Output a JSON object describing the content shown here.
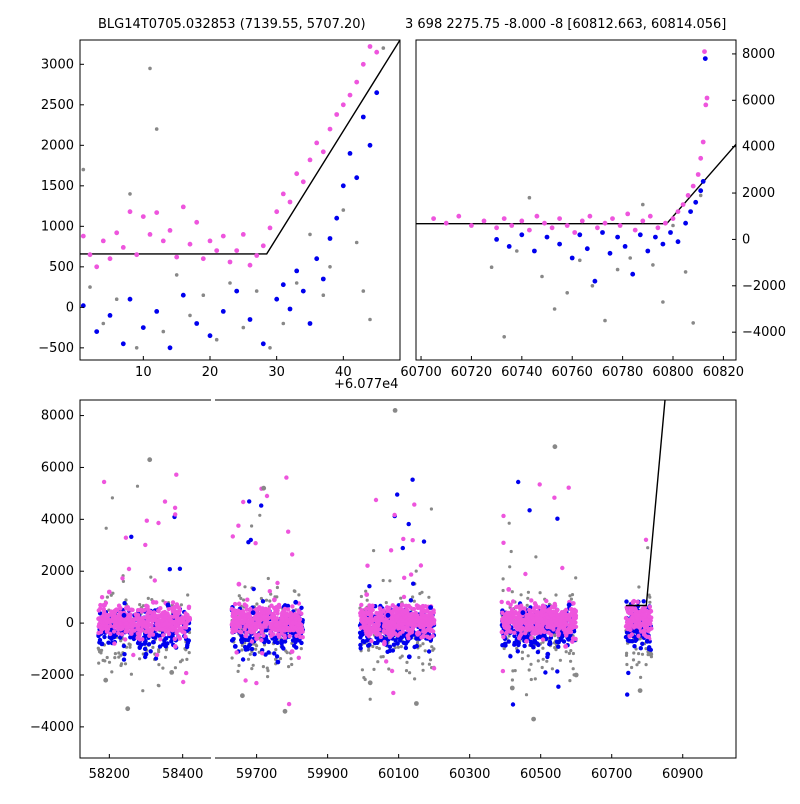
{
  "figure": {
    "title_left": "BLG14T0705.032853 (7139.55, 5707.20)",
    "title_right": "3 698 2275.75 -8.000 -8 [60812.663, 60814.056]",
    "offset_label": "+6.077e4"
  },
  "colors": {
    "pink": "#ee55dd",
    "blue": "#0000ee",
    "gray": "#888888",
    "line": "#000000"
  },
  "chart_data": [
    {
      "panel": "top-left",
      "type": "scatter",
      "title": "BLG14T0705.032853 (7139.55, 5707.20)",
      "x_offset_note": "+6.077e4",
      "xlim": [
        0.5,
        48.5
      ],
      "ylim": [
        -650,
        3300
      ],
      "xticks": [
        10,
        20,
        30,
        40
      ],
      "yticks": [
        -500,
        0,
        500,
        1000,
        1500,
        2000,
        2500,
        3000
      ],
      "model_line": [
        [
          0.5,
          660
        ],
        [
          28.5,
          660
        ],
        [
          48.5,
          3300
        ]
      ],
      "series": [
        {
          "color": "pink",
          "points": [
            [
              1,
              880
            ],
            [
              2,
              650
            ],
            [
              3,
              500
            ],
            [
              4,
              820
            ],
            [
              5,
              600
            ],
            [
              6,
              920
            ],
            [
              7,
              740
            ],
            [
              8,
              1180
            ],
            [
              9,
              650
            ],
            [
              10,
              1120
            ],
            [
              11,
              900
            ],
            [
              12,
              1170
            ],
            [
              13,
              820
            ],
            [
              14,
              950
            ],
            [
              15,
              620
            ],
            [
              16,
              1240
            ],
            [
              17,
              780
            ],
            [
              18,
              1050
            ],
            [
              19,
              600
            ],
            [
              20,
              820
            ],
            [
              21,
              700
            ],
            [
              22,
              880
            ],
            [
              23,
              560
            ],
            [
              24,
              700
            ],
            [
              25,
              900
            ],
            [
              26,
              520
            ],
            [
              27,
              640
            ],
            [
              28,
              760
            ],
            [
              29,
              980
            ],
            [
              30,
              1180
            ],
            [
              31,
              1400
            ],
            [
              32,
              1300
            ],
            [
              33,
              1650
            ],
            [
              34,
              1550
            ],
            [
              35,
              1820
            ],
            [
              36,
              2030
            ],
            [
              37,
              1920
            ],
            [
              38,
              2200
            ],
            [
              39,
              2380
            ],
            [
              40,
              2500
            ],
            [
              41,
              2620
            ],
            [
              42,
              2780
            ],
            [
              43,
              3000
            ],
            [
              44,
              3220
            ],
            [
              45,
              3150
            ]
          ]
        },
        {
          "color": "blue",
          "points": [
            [
              1,
              20
            ],
            [
              3,
              -300
            ],
            [
              5,
              -100
            ],
            [
              7,
              -450
            ],
            [
              8,
              100
            ],
            [
              10,
              -250
            ],
            [
              12,
              -50
            ],
            [
              14,
              -500
            ],
            [
              16,
              150
            ],
            [
              18,
              -200
            ],
            [
              20,
              -350
            ],
            [
              22,
              -50
            ],
            [
              24,
              200
            ],
            [
              26,
              -150
            ],
            [
              28,
              -450
            ],
            [
              30,
              100
            ],
            [
              31,
              280
            ],
            [
              32,
              -20
            ],
            [
              33,
              450
            ],
            [
              34,
              200
            ],
            [
              35,
              -200
            ],
            [
              36,
              600
            ],
            [
              37,
              350
            ],
            [
              38,
              850
            ],
            [
              39,
              1100
            ],
            [
              40,
              1500
            ],
            [
              41,
              1900
            ],
            [
              42,
              1600
            ],
            [
              43,
              2350
            ],
            [
              44,
              2000
            ],
            [
              45,
              2650
            ]
          ]
        },
        {
          "color": "gray",
          "points": [
            [
              1,
              1700
            ],
            [
              2,
              250
            ],
            [
              4,
              -200
            ],
            [
              6,
              100
            ],
            [
              8,
              1400
            ],
            [
              9,
              -500
            ],
            [
              11,
              2950
            ],
            [
              12,
              2200
            ],
            [
              13,
              -300
            ],
            [
              15,
              400
            ],
            [
              17,
              -100
            ],
            [
              19,
              150
            ],
            [
              21,
              -400
            ],
            [
              23,
              300
            ],
            [
              25,
              -250
            ],
            [
              27,
              200
            ],
            [
              29,
              -500
            ],
            [
              31,
              -200
            ],
            [
              33,
              300
            ],
            [
              35,
              900
            ],
            [
              37,
              150
            ],
            [
              38,
              500
            ],
            [
              40,
              1200
            ],
            [
              42,
              800
            ],
            [
              43,
              200
            ],
            [
              44,
              -150
            ],
            [
              46,
              3200
            ]
          ]
        }
      ]
    },
    {
      "panel": "top-right",
      "type": "scatter",
      "title": "3 698 2275.75 -8.000 -8 [60812.663, 60814.056]",
      "xlim": [
        60698,
        60825
      ],
      "ylim": [
        -5200,
        8600
      ],
      "xticks": [
        60700,
        60720,
        60740,
        60760,
        60780,
        60800,
        60820
      ],
      "yticks": [
        -4000,
        -2000,
        0,
        2000,
        4000,
        6000,
        8000
      ],
      "model_line": [
        [
          60698,
          680
        ],
        [
          60797.5,
          680
        ],
        [
          60825,
          4100
        ]
      ],
      "series": [
        {
          "color": "pink",
          "points": [
            [
              60705,
              900
            ],
            [
              60710,
              700
            ],
            [
              60715,
              1000
            ],
            [
              60720,
              600
            ],
            [
              60725,
              800
            ],
            [
              60730,
              500
            ],
            [
              60733,
              900
            ],
            [
              60736,
              600
            ],
            [
              60740,
              800
            ],
            [
              60743,
              400
            ],
            [
              60746,
              1000
            ],
            [
              60749,
              700
            ],
            [
              60752,
              500
            ],
            [
              60755,
              900
            ],
            [
              60758,
              600
            ],
            [
              60761,
              300
            ],
            [
              60764,
              800
            ],
            [
              60767,
              1000
            ],
            [
              60770,
              500
            ],
            [
              60773,
              700
            ],
            [
              60776,
              900
            ],
            [
              60779,
              600
            ],
            [
              60782,
              1100
            ],
            [
              60785,
              400
            ],
            [
              60788,
              800
            ],
            [
              60791,
              1000
            ],
            [
              60794,
              500
            ],
            [
              60797,
              700
            ],
            [
              60800,
              900
            ],
            [
              60802,
              1200
            ],
            [
              60804,
              1500
            ],
            [
              60806,
              1900
            ],
            [
              60808,
              2300
            ],
            [
              60810,
              2800
            ],
            [
              60811,
              3500
            ],
            [
              60812,
              4200
            ],
            [
              60813,
              5800
            ],
            [
              60813.5,
              6100
            ],
            [
              60812.5,
              8100
            ]
          ]
        },
        {
          "color": "blue",
          "points": [
            [
              60730,
              0
            ],
            [
              60735,
              -300
            ],
            [
              60740,
              200
            ],
            [
              60745,
              -500
            ],
            [
              60750,
              100
            ],
            [
              60755,
              -200
            ],
            [
              60760,
              -800
            ],
            [
              60763,
              200
            ],
            [
              60766,
              -400
            ],
            [
              60769,
              -1800
            ],
            [
              60772,
              300
            ],
            [
              60775,
              -600
            ],
            [
              60778,
              100
            ],
            [
              60781,
              -300
            ],
            [
              60784,
              -1500
            ],
            [
              60787,
              200
            ],
            [
              60790,
              -500
            ],
            [
              60793,
              100
            ],
            [
              60796,
              -200
            ],
            [
              60799,
              300
            ],
            [
              60802,
              -100
            ],
            [
              60805,
              700
            ],
            [
              60807,
              1200
            ],
            [
              60809,
              1600
            ],
            [
              60811,
              2100
            ],
            [
              60812,
              2500
            ],
            [
              60812.8,
              7800
            ]
          ]
        },
        {
          "color": "gray",
          "points": [
            [
              60728,
              -1200
            ],
            [
              60733,
              -4200
            ],
            [
              60738,
              -500
            ],
            [
              60743,
              1800
            ],
            [
              60748,
              -1600
            ],
            [
              60753,
              -3000
            ],
            [
              60758,
              -2300
            ],
            [
              60763,
              -900
            ],
            [
              60768,
              -2000
            ],
            [
              60773,
              -3500
            ],
            [
              60778,
              -1300
            ],
            [
              60783,
              -800
            ],
            [
              60788,
              1500
            ],
            [
              60792,
              -1100
            ],
            [
              60796,
              -2700
            ],
            [
              60800,
              600
            ],
            [
              60805,
              -1400
            ],
            [
              60808,
              -3600
            ],
            [
              60811,
              1900
            ]
          ]
        }
      ]
    },
    {
      "panel": "bottom",
      "type": "scatter",
      "xlim": [
        58120,
        61050
      ],
      "ylim": [
        -5200,
        8600
      ],
      "xticks": [
        58200,
        58400,
        59700,
        59900,
        60100,
        60300,
        60500,
        60700,
        60900
      ],
      "yticks": [
        -4000,
        -2000,
        0,
        2000,
        4000,
        6000,
        8000
      ],
      "segments": [
        {
          "xlim": [
            58120,
            58480
          ],
          "clusters": [
            [
              58170,
              58420
            ]
          ]
        },
        {
          "xlim": [
            59580,
            60850
          ],
          "clusters": [
            [
              59630,
              59830
            ],
            [
              59990,
              60200
            ],
            [
              60390,
              60600
            ],
            [
              60740,
              60812
            ]
          ]
        }
      ],
      "model_line": [
        [
          60740,
          680
        ],
        [
          60797.5,
          680
        ],
        [
          60850,
          8600
        ]
      ],
      "series": [
        {
          "color": "pink",
          "points": [
            [
              58200,
              1200
            ],
            [
              58260,
              -400
            ],
            [
              58320,
              800
            ],
            [
              58380,
              -900
            ],
            [
              59650,
              1500
            ],
            [
              59700,
              -600
            ],
            [
              59750,
              900
            ],
            [
              59800,
              -1100
            ],
            [
              60010,
              1100
            ],
            [
              60060,
              -800
            ],
            [
              60110,
              700
            ],
            [
              60170,
              -500
            ],
            [
              60410,
              1300
            ],
            [
              60460,
              -700
            ],
            [
              60510,
              600
            ],
            [
              60570,
              -900
            ],
            [
              60760,
              800
            ],
            [
              60790,
              500
            ],
            [
              60805,
              -600
            ]
          ]
        },
        {
          "color": "blue",
          "points": [
            [
              58180,
              -800
            ],
            [
              58240,
              300
            ],
            [
              58300,
              -1200
            ],
            [
              58360,
              700
            ],
            [
              59640,
              -900
            ],
            [
              59690,
              400
            ],
            [
              59760,
              -1500
            ],
            [
              59810,
              800
            ],
            [
              60000,
              -700
            ],
            [
              60070,
              300
            ],
            [
              60130,
              -1300
            ],
            [
              60190,
              600
            ],
            [
              60400,
              -800
            ],
            [
              60450,
              400
            ],
            [
              60520,
              -1200
            ],
            [
              60580,
              700
            ],
            [
              60770,
              -300
            ],
            [
              60800,
              -700
            ]
          ]
        },
        {
          "color": "gray",
          "points": [
            [
              58190,
              -2200
            ],
            [
              58250,
              -3300
            ],
            [
              58310,
              6300
            ],
            [
              58370,
              -1900
            ],
            [
              59660,
              -2800
            ],
            [
              59720,
              5200
            ],
            [
              59780,
              -3400
            ],
            [
              60020,
              -2300
            ],
            [
              60090,
              8200
            ],
            [
              60150,
              -3100
            ],
            [
              60420,
              -2500
            ],
            [
              60480,
              -3700
            ],
            [
              60540,
              6800
            ],
            [
              60600,
              -2000
            ],
            [
              60780,
              -2600
            ],
            [
              60810,
              -1200
            ]
          ]
        }
      ]
    }
  ]
}
